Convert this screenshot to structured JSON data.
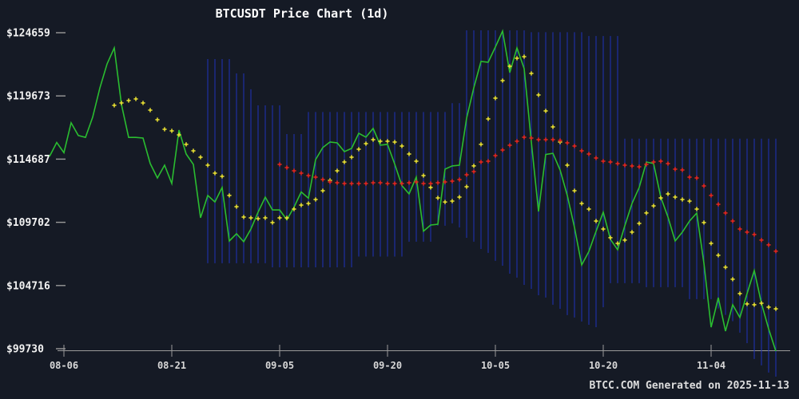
{
  "window": {
    "title": "BTCUSDT Price Chart (1d)",
    "watermark": "BTCC.COM Generated on 2025-11-13"
  },
  "colors": {
    "background": "#151a25",
    "price_green": "#2abD30",
    "ma_fast_yellow": "#ece332",
    "ma_slow_red": "#e8261f",
    "band_blue": "#2033bb",
    "axis_line": "#9a9a9a",
    "x_tick_label": "#d8d8d8",
    "y_tick_label": "#f2f2f2",
    "title_text": "#ffffff",
    "watermark_text": "#dedede"
  },
  "chart_data": {
    "type": "line",
    "title": "BTCUSDT Price Chart (1d)",
    "xlabel": "",
    "ylabel": "",
    "grid": false,
    "legend": "none",
    "x_axis": {
      "start_date": "2025-08-04",
      "end_date": "2025-11-13",
      "interval": "1d",
      "ticks": [
        {
          "label": "08-06",
          "index": 2
        },
        {
          "label": "08-21",
          "index": 17
        },
        {
          "label": "09-05",
          "index": 32
        },
        {
          "label": "09-20",
          "index": 47
        },
        {
          "label": "10-05",
          "index": 62
        },
        {
          "label": "10-20",
          "index": 77
        },
        {
          "label": "11-04",
          "index": 92
        }
      ]
    },
    "y_axis": {
      "min_value": 99730,
      "max_value": 124659,
      "ticks": [
        {
          "label": "$124659",
          "value": 124659
        },
        {
          "label": "$119673",
          "value": 119673
        },
        {
          "label": "$114687",
          "value": 114687
        },
        {
          "label": "$109702",
          "value": 109702
        },
        {
          "label": "$104716",
          "value": 104716
        },
        {
          "label": "$99730",
          "value": 99730
        }
      ]
    },
    "series": [
      {
        "name": "price",
        "style": "line",
        "color_key": "price_green",
        "start_index": 0,
        "values": [
          114900,
          116000,
          115200,
          117550,
          116550,
          116400,
          118000,
          120300,
          122200,
          123460,
          119000,
          116400,
          116400,
          116350,
          114340,
          113200,
          114210,
          112760,
          116980,
          115090,
          114270,
          110060,
          111820,
          111310,
          112450,
          108230,
          108800,
          108170,
          109170,
          110500,
          111690,
          110680,
          110680,
          109900,
          110900,
          112100,
          111600,
          114650,
          115600,
          116040,
          115970,
          115280,
          115530,
          116730,
          116420,
          117110,
          115790,
          115850,
          114300,
          112600,
          111945,
          113270,
          109000,
          109490,
          109550,
          113900,
          114150,
          114210,
          117925,
          120320,
          122390,
          122330,
          123530,
          124790,
          121510,
          123460,
          121830,
          116035,
          110560,
          115050,
          115150,
          113830,
          111820,
          109300,
          106340,
          107400,
          108990,
          110500,
          108360,
          107540,
          109430,
          111190,
          112450,
          114460,
          114340,
          111690,
          110120,
          108230,
          108930,
          109800,
          110430,
          106470,
          101430,
          103760,
          101120,
          103200,
          102190,
          104080,
          105900,
          103320,
          101300,
          99540
        ]
      },
      {
        "name": "ma_fast",
        "style": "plus_markers",
        "color_key": "ma_fast_yellow",
        "start_index": 9,
        "values": [
          118930,
          119120,
          119310,
          119435,
          119120,
          118550,
          117800,
          117040,
          116915,
          116600,
          115850,
          115340,
          114840,
          114210,
          113580,
          113330,
          111820,
          110935,
          110120,
          110055,
          109990,
          110055,
          109680,
          110055,
          110055,
          110745,
          111060,
          111190,
          111500,
          112195,
          113015,
          113770,
          114460,
          114840,
          115470,
          115910,
          116225,
          116100,
          116100,
          116035,
          115720,
          115090,
          114525,
          113390,
          112450,
          111630,
          111310,
          111375,
          111690,
          112510,
          114150,
          115850,
          117860,
          119500,
          120880,
          122015,
          122645,
          122770,
          121450,
          119750,
          118490,
          117230,
          116035,
          114210,
          112195,
          111190,
          110745,
          109800,
          109175,
          108485,
          108040,
          108295,
          108925,
          109615,
          110435,
          111000,
          111630,
          111945,
          111690,
          111500,
          111375,
          110745,
          109680,
          108040,
          107100,
          106155,
          105210,
          104080,
          103260,
          103200,
          103320,
          103010,
          102880
        ]
      },
      {
        "name": "ma_slow",
        "style": "plus_markers",
        "color_key": "ma_slow_red",
        "start_index": 32,
        "values": [
          114270,
          114020,
          113770,
          113580,
          113390,
          113265,
          113075,
          112890,
          112825,
          112760,
          112760,
          112760,
          112760,
          112825,
          112825,
          112760,
          112760,
          112760,
          112825,
          112890,
          112760,
          112760,
          112825,
          112890,
          112950,
          113075,
          113455,
          113705,
          114460,
          114525,
          114965,
          115405,
          115785,
          116100,
          116415,
          116350,
          116225,
          116225,
          116225,
          116160,
          115970,
          115720,
          115340,
          115090,
          114775,
          114525,
          114460,
          114335,
          114210,
          114145,
          114080,
          114270,
          114460,
          114525,
          114335,
          113895,
          113830,
          113265,
          113200,
          112570,
          111820,
          111125,
          110435,
          109805,
          109175,
          108930,
          108740,
          108300,
          107920,
          107420
        ]
      },
      {
        "name": "range_band",
        "style": "vertical_bars",
        "color_key": "band_blue",
        "start_index": 22,
        "top": [
          122580,
          122580,
          122580,
          122580,
          121450,
          121450,
          120200,
          118930,
          118930,
          118930,
          118930,
          116665,
          116665,
          116665,
          118400,
          118400,
          118400,
          118400,
          118400,
          118400,
          118400,
          118400,
          118400,
          118400,
          118400,
          118400,
          118400,
          118400,
          118400,
          118400,
          118400,
          118400,
          118400,
          118400,
          119100,
          119100,
          124850,
          124850,
          124850,
          124850,
          124850,
          124850,
          124850,
          124850,
          124850,
          124700,
          124700,
          124700,
          124700,
          124700,
          124700,
          124700,
          124700,
          124400,
          124400,
          124400,
          124400,
          124400,
          116300,
          116300,
          116300,
          116300,
          116300,
          116300,
          116300,
          116300,
          116300,
          116300,
          116300,
          116300,
          116300,
          116300,
          116300,
          116300,
          116300,
          116300,
          116300,
          116300,
          116300,
          116300
        ],
        "bottom": [
          106470,
          106470,
          106470,
          106470,
          106470,
          106470,
          106470,
          106470,
          106470,
          106155,
          106155,
          106155,
          106155,
          106155,
          106155,
          106155,
          106155,
          106155,
          106155,
          106155,
          106155,
          107000,
          107000,
          107000,
          107000,
          107000,
          107000,
          107000,
          108170,
          108170,
          108170,
          108170,
          109430,
          109430,
          109620,
          109300,
          108480,
          108170,
          107600,
          107290,
          106660,
          106280,
          105650,
          105340,
          104770,
          104455,
          103950,
          103765,
          103200,
          102880,
          102380,
          102190,
          101875,
          101620,
          101430,
          103000,
          104900,
          104900,
          104900,
          104900,
          104900,
          104585,
          104585,
          104585,
          104585,
          104585,
          104585,
          103640,
          103640,
          103640,
          103640,
          102900,
          102400,
          101900,
          101000,
          100170,
          98920,
          98415,
          97850,
          97530
        ]
      }
    ]
  }
}
